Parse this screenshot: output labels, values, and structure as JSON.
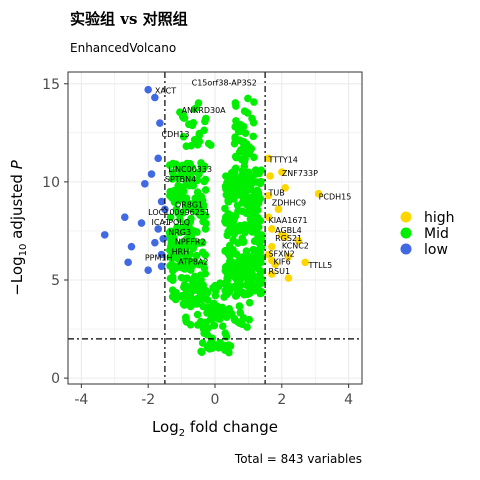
{
  "chart_data": {
    "type": "scatter",
    "title": "实验组 vs 对照组",
    "subtitle": "EnhancedVolcano",
    "xlabel": "Log2 fold change",
    "ylabel": "-Log10 adjusted P",
    "xlim": [
      -4.4,
      4.4
    ],
    "ylim": [
      -0.3,
      15.6
    ],
    "xticks": [
      -4,
      -2,
      0,
      2,
      4
    ],
    "yticks": [
      0,
      5,
      10,
      15
    ],
    "grid": true,
    "legend_position": "right",
    "caption": "Total = 843 variables",
    "thresholds": {
      "fc": [
        -1.5,
        1.5
      ],
      "p_line": 2
    },
    "colors": {
      "high": "#FFD700",
      "Mid": "#00EE00",
      "low": "#4169E1",
      "grid": "#ebebeb",
      "panel_border": "#333333"
    },
    "series": [
      {
        "name": "high",
        "color": "#FFD700",
        "points": [
          [
            1.6,
            11.2
          ],
          [
            2.0,
            10.5
          ],
          [
            2.1,
            9.7
          ],
          [
            1.6,
            9.3
          ],
          [
            3.1,
            9.4
          ],
          [
            1.6,
            8.2
          ],
          [
            1.7,
            7.6
          ],
          [
            2.0,
            7.3
          ],
          [
            2.1,
            7.2
          ],
          [
            2.5,
            7.0
          ],
          [
            1.7,
            6.7
          ],
          [
            1.6,
            6.3
          ],
          [
            2.2,
            6.2
          ],
          [
            1.8,
            5.8
          ],
          [
            2.7,
            5.9
          ],
          [
            1.7,
            5.3
          ],
          [
            2.2,
            5.1
          ],
          [
            1.65,
            10.3
          ],
          [
            1.9,
            8.6
          ],
          [
            1.7,
            6.0
          ]
        ]
      },
      {
        "name": "Mid",
        "color": "#00EE00",
        "points": []
      },
      {
        "name": "low",
        "color": "#4169E1",
        "points": [
          [
            -2.0,
            14.7
          ],
          [
            -1.8,
            14.3
          ],
          [
            -1.65,
            13.0
          ],
          [
            -1.7,
            11.2
          ],
          [
            -1.9,
            10.4
          ],
          [
            -2.1,
            9.9
          ],
          [
            -1.6,
            9.0
          ],
          [
            -1.5,
            8.6
          ],
          [
            -2.7,
            8.2
          ],
          [
            -2.2,
            7.9
          ],
          [
            -1.7,
            7.6
          ],
          [
            -3.3,
            7.3
          ],
          [
            -2.5,
            6.7
          ],
          [
            -1.8,
            6.9
          ],
          [
            -1.6,
            6.3
          ],
          [
            -2.6,
            5.9
          ],
          [
            -2.0,
            5.5
          ],
          [
            -1.6,
            5.7
          ],
          [
            -1.55,
            7.1
          ]
        ]
      }
    ],
    "gene_labels": [
      {
        "text": "C15orf38-AP3S2",
        "x": -0.7,
        "y": 14.9
      },
      {
        "text": "XACT",
        "x": -1.8,
        "y": 14.5
      },
      {
        "text": "ANKRD30A",
        "x": -1.0,
        "y": 13.5
      },
      {
        "text": "CDH13",
        "x": -1.6,
        "y": 12.3
      },
      {
        "text": "LINC00333",
        "x": -1.4,
        "y": 10.5
      },
      {
        "text": "SPTBN4",
        "x": -1.5,
        "y": 10.0
      },
      {
        "text": "OR8G1",
        "x": -1.2,
        "y": 8.7
      },
      {
        "text": "LOC100996251",
        "x": -2.0,
        "y": 8.3
      },
      {
        "text": "ICA1",
        "x": -1.9,
        "y": 7.8
      },
      {
        "text": "POLQ",
        "x": -1.4,
        "y": 7.8
      },
      {
        "text": "NRG3",
        "x": -1.4,
        "y": 7.3
      },
      {
        "text": "NPFFR2",
        "x": -1.2,
        "y": 6.8
      },
      {
        "text": "HRH",
        "x": -1.3,
        "y": 6.3
      },
      {
        "text": "PPM1H",
        "x": -2.1,
        "y": 6.0
      },
      {
        "text": "ATP8A2",
        "x": -1.1,
        "y": 5.8
      },
      {
        "text": "TTTY14",
        "x": 1.6,
        "y": 11.0
      },
      {
        "text": "ZNF733P",
        "x": 2.0,
        "y": 10.3
      },
      {
        "text": "TUB",
        "x": 1.6,
        "y": 9.3
      },
      {
        "text": "PCDH15",
        "x": 3.1,
        "y": 9.1
      },
      {
        "text": "ZDHHC9",
        "x": 1.7,
        "y": 8.8
      },
      {
        "text": "KIAA1671",
        "x": 1.6,
        "y": 7.9
      },
      {
        "text": "AGBL4",
        "x": 1.8,
        "y": 7.4
      },
      {
        "text": "RGS21",
        "x": 1.8,
        "y": 7.0
      },
      {
        "text": "KCNC2",
        "x": 2.0,
        "y": 6.6
      },
      {
        "text": "SFXN2",
        "x": 1.6,
        "y": 6.2
      },
      {
        "text": "KIF6",
        "x": 1.75,
        "y": 5.8
      },
      {
        "text": "TTLL5",
        "x": 2.8,
        "y": 5.6
      },
      {
        "text": "RSU1",
        "x": 1.6,
        "y": 5.3
      }
    ]
  }
}
